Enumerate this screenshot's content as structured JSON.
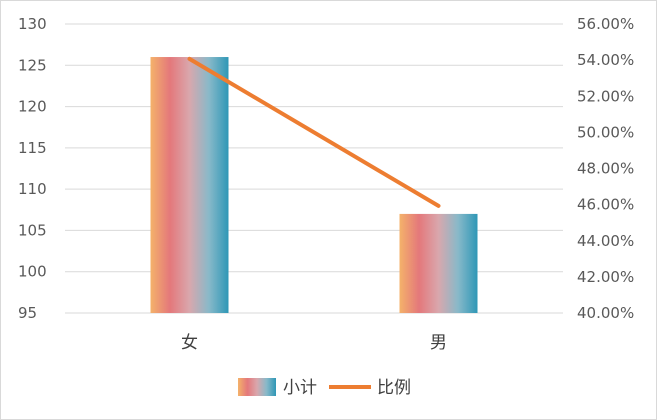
{
  "chart_data": {
    "type": "bar",
    "categories": [
      "女",
      "男"
    ],
    "series": [
      {
        "name": "小计",
        "type": "bar",
        "axis": "left",
        "values": [
          126,
          107
        ]
      },
      {
        "name": "比例",
        "type": "line",
        "axis": "right",
        "values": [
          54.07,
          45.93
        ]
      }
    ],
    "y_left": {
      "min": 95,
      "max": 130,
      "step": 5,
      "ticks": [
        "95",
        "100",
        "105",
        "110",
        "115",
        "120",
        "125",
        "130"
      ]
    },
    "y_right": {
      "min": 40,
      "max": 56,
      "step": 2,
      "ticks": [
        "40.00%",
        "42.00%",
        "44.00%",
        "46.00%",
        "48.00%",
        "50.00%",
        "52.00%",
        "54.00%",
        "56.00%"
      ]
    },
    "grid": true,
    "legend_position": "bottom",
    "colors": {
      "line": "#ed7d31",
      "grid": "#d9d9d9",
      "bar_gradient": [
        "#f4b26a",
        "#e4787b",
        "#d9a7ad",
        "#88b9c9",
        "#2e97b6"
      ]
    }
  }
}
